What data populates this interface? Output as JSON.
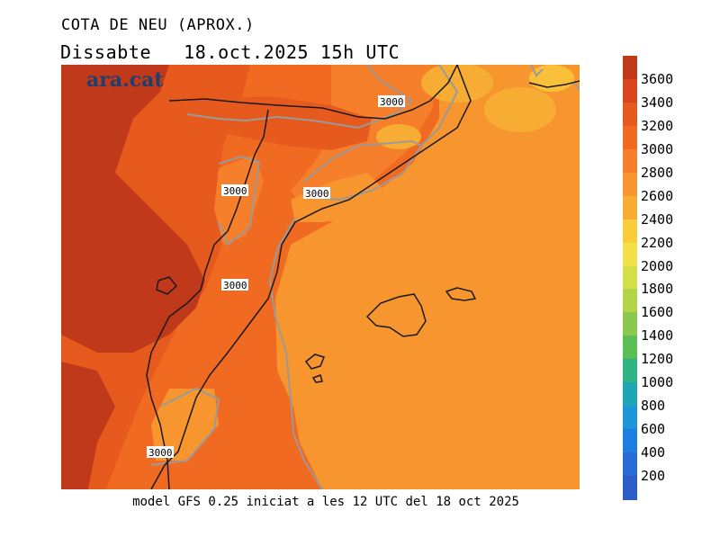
{
  "title": {
    "line1": "COTA DE NEU (APROX.)",
    "day": "Dissabte",
    "datetime": "18.oct.2025 15h UTC"
  },
  "logo": "ara.cat",
  "footer": "model GFS 0.25 iniciat a les 12 UTC del 18 oct 2025",
  "map": {
    "contour_labels": [
      "3000",
      "3000",
      "3000",
      "3000",
      "3000"
    ]
  },
  "colorbar": {
    "unit_labels": [
      "3600",
      "3400",
      "3200",
      "3000",
      "2800",
      "2600",
      "2400",
      "2200",
      "2000",
      "1800",
      "1600",
      "1400",
      "1200",
      "1000",
      "800",
      "600",
      "400",
      "200"
    ],
    "colors_top_to_bottom": [
      "#c0391a",
      "#d9451f",
      "#e75a1d",
      "#f06a22",
      "#f57f2a",
      "#f7962e",
      "#f7ad34",
      "#f9cc3c",
      "#f2e04a",
      "#d4e04a",
      "#b2d448",
      "#8ac94d",
      "#5cbf55",
      "#2fb383",
      "#1ea7b3",
      "#1e95d6",
      "#1f7fe0",
      "#2a6ad4",
      "#2d5ec8"
    ]
  }
}
